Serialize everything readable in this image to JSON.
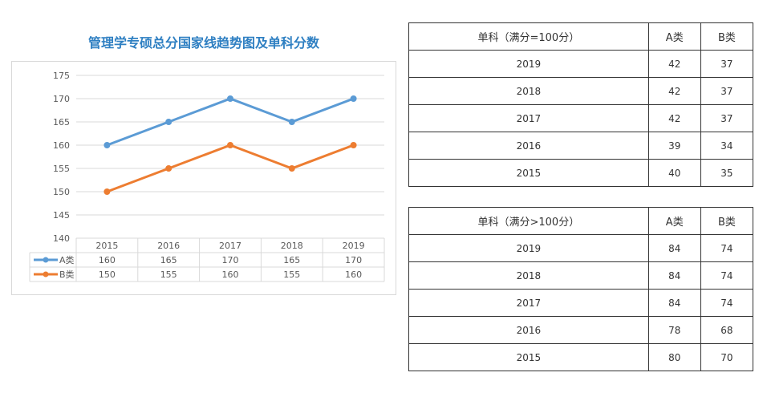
{
  "colors": {
    "title": "#2e7fc2",
    "series_a": "#5b9bd5",
    "series_b": "#ed7d31",
    "grid": "#d9d9d9",
    "axis_text": "#595959"
  },
  "chart_data": {
    "type": "line",
    "title": "管理学专硕总分国家线趋势图及单科分数",
    "categories": [
      "2015",
      "2016",
      "2017",
      "2018",
      "2019"
    ],
    "series": [
      {
        "name": "A类",
        "values": [
          160,
          165,
          170,
          165,
          170
        ]
      },
      {
        "name": "B类",
        "values": [
          150,
          155,
          160,
          155,
          160
        ]
      }
    ],
    "ylim": [
      140,
      175
    ],
    "yticks": [
      140,
      145,
      150,
      155,
      160,
      165,
      170,
      175
    ],
    "xlabel": "",
    "ylabel": "",
    "grid": true,
    "legend": "data-table-bottom"
  },
  "table1": {
    "headers": [
      "单科（满分=100分）",
      "A类",
      "B类"
    ],
    "rows": [
      [
        "2019",
        "42",
        "37"
      ],
      [
        "2018",
        "42",
        "37"
      ],
      [
        "2017",
        "42",
        "37"
      ],
      [
        "2016",
        "39",
        "34"
      ],
      [
        "2015",
        "40",
        "35"
      ]
    ]
  },
  "table2": {
    "headers": [
      "单科（满分>100分）",
      "A类",
      "B类"
    ],
    "rows": [
      [
        "2019",
        "84",
        "74"
      ],
      [
        "2018",
        "84",
        "74"
      ],
      [
        "2017",
        "84",
        "74"
      ],
      [
        "2016",
        "78",
        "68"
      ],
      [
        "2015",
        "80",
        "70"
      ]
    ]
  }
}
